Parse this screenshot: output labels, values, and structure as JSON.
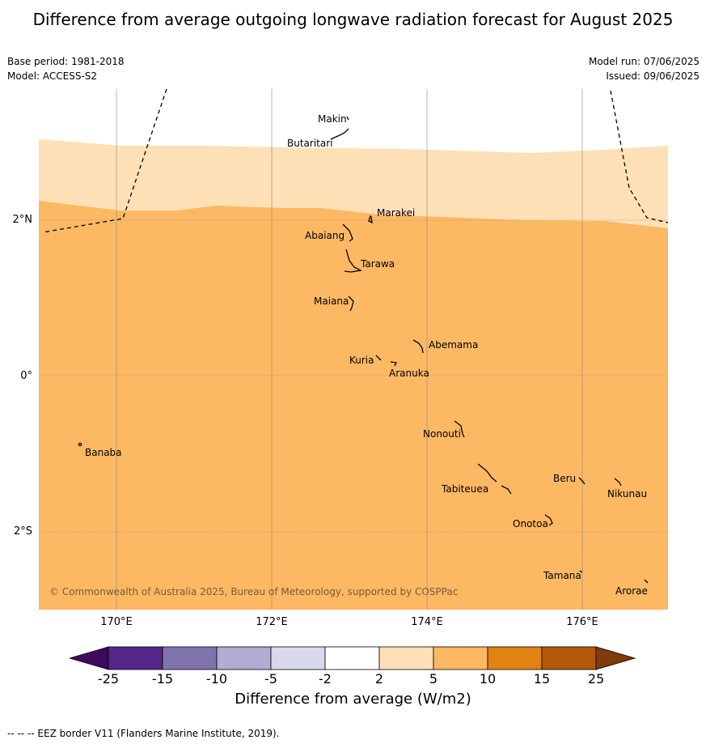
{
  "title": "Difference from average outgoing longwave radiation forecast for August 2025",
  "base_period": "Base period: 1981-2018",
  "model": "Model: ACCESS-S2",
  "model_run": "Model run: 07/06/2025",
  "issued": "Issued: 09/06/2025",
  "map": {
    "lat_labels": [
      "2°N",
      "0°",
      "2°S"
    ],
    "lon_labels": [
      "170°E",
      "172°E",
      "174°E",
      "176°E"
    ],
    "places": [
      "Makin",
      "Butaritari",
      "Marakei",
      "Abaiang",
      "Tarawa",
      "Maiana",
      "Abemama",
      "Kuria",
      "Aranuka",
      "Banaba",
      "Nonouti",
      "Beru",
      "Tabiteuea",
      "Nikunau",
      "Onotoa",
      "Tamana",
      "Arorae"
    ],
    "copyright": "© Commonwealth of Australia 2025, Bureau of Meteorology, supported by COSPPac",
    "colors": {
      "light_orange": "#fee0b6",
      "orange": "#fdb863",
      "grid": "#888888"
    }
  },
  "colorbar": {
    "ticks": [
      "-25",
      "-15",
      "-10",
      "-5",
      "-2",
      "2",
      "5",
      "10",
      "15",
      "25"
    ],
    "colors": [
      "#3f0a5e",
      "#542788",
      "#8073ac",
      "#b2abd2",
      "#d8daeb",
      "#ffffff",
      "#fee0b6",
      "#fdb863",
      "#e08214",
      "#b35806",
      "#7f3b08"
    ],
    "label": "Difference from average (W/m2)"
  },
  "footer": "--  --  -- EEZ border V11 (Flanders Marine Institute, 2019)."
}
